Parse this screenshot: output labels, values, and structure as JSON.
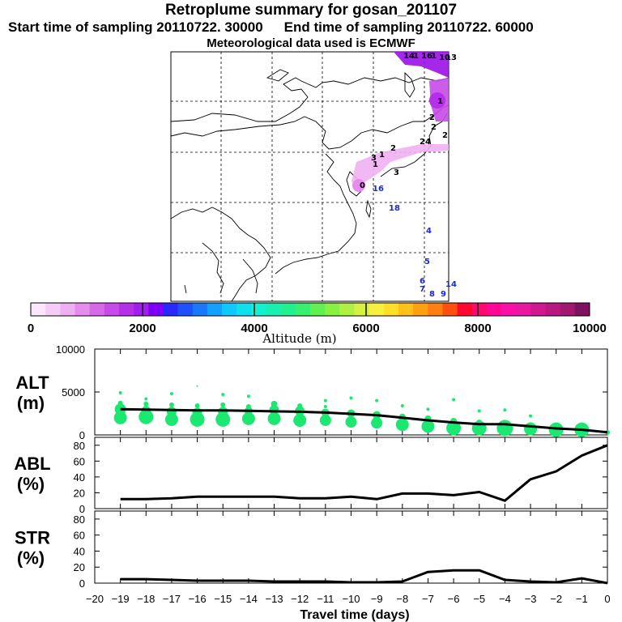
{
  "title": "Retroplume summary for gosan_201107",
  "start_label": "Start time of sampling 20110722. 30000",
  "end_label": "End time of sampling 20110722. 60000",
  "met_label": "Meteorological data used is ECMWF",
  "colorbar": {
    "ticks": [
      "0",
      "2000",
      "4000",
      "6000",
      "8000",
      "10000"
    ],
    "label": "Altitude (m)",
    "colors": [
      "#fbe6fb",
      "#f5ccf6",
      "#efb0f2",
      "#e58cee",
      "#d868ea",
      "#c84ae8",
      "#b630ea",
      "#a21ef0",
      "#7c00f8",
      "#2828ff",
      "#1e50ff",
      "#1a78ff",
      "#14a0ff",
      "#0ec8ff",
      "#10e0ee",
      "#14f0d0",
      "#18f0b0",
      "#20f090",
      "#38f070",
      "#60f050",
      "#88f040",
      "#b0f040",
      "#d8f040",
      "#f8f040",
      "#ffe028",
      "#ffc018",
      "#ffa010",
      "#ff8010",
      "#ff5010",
      "#ff0830",
      "#ff0870",
      "#ff0898",
      "#f810a8",
      "#e818a0",
      "#d01890",
      "#b81880",
      "#a01870",
      "#801060"
    ],
    "trace_color": "#1ae8a0"
  },
  "map": {
    "labels": [
      "14",
      "1",
      "16",
      "1",
      "10",
      "13",
      "2",
      "1",
      "3",
      "24",
      "1",
      "2",
      "2",
      "2",
      "1",
      "3",
      "0",
      "16",
      "18",
      "4",
      "5",
      "6",
      "7",
      "8",
      "9",
      "14"
    ]
  },
  "chart_data": [
    {
      "type": "line",
      "name": "ALT",
      "ylabel": "ALT",
      "yunit": "(m)",
      "ylim": [
        0,
        10000
      ],
      "yticks": [
        "10000",
        "5000",
        "0"
      ],
      "x": [
        -19,
        -18,
        -17,
        -16,
        -15,
        -14,
        -13,
        -12,
        -11,
        -10,
        -9,
        -8,
        -7,
        -6,
        -5,
        -4,
        -3,
        -2,
        -1,
        0
      ],
      "values": [
        3000,
        2950,
        2900,
        2850,
        2850,
        2800,
        2750,
        2700,
        2600,
        2450,
        2300,
        2000,
        1700,
        1450,
        1250,
        1250,
        1000,
        750,
        600,
        300
      ],
      "scatter_color": "#1ae870",
      "scatter": [
        {
          "x": -19,
          "y": 3000,
          "s": 7
        },
        {
          "x": -19,
          "y": 3700,
          "s": 3
        },
        {
          "x": -19,
          "y": 2000,
          "s": 8
        },
        {
          "x": -19,
          "y": 4900,
          "s": 2
        },
        {
          "x": -18,
          "y": 2800,
          "s": 6
        },
        {
          "x": -18,
          "y": 3600,
          "s": 3
        },
        {
          "x": -18,
          "y": 2100,
          "s": 9
        },
        {
          "x": -18,
          "y": 4200,
          "s": 2
        },
        {
          "x": -17,
          "y": 2700,
          "s": 6
        },
        {
          "x": -17,
          "y": 3500,
          "s": 3
        },
        {
          "x": -17,
          "y": 1800,
          "s": 8
        },
        {
          "x": -17,
          "y": 4800,
          "s": 2
        },
        {
          "x": -16,
          "y": 2600,
          "s": 6
        },
        {
          "x": -16,
          "y": 3400,
          "s": 3
        },
        {
          "x": -16,
          "y": 1800,
          "s": 9
        },
        {
          "x": -16,
          "y": 5700,
          "s": 1
        },
        {
          "x": -15,
          "y": 2700,
          "s": 6
        },
        {
          "x": -15,
          "y": 3500,
          "s": 3
        },
        {
          "x": -15,
          "y": 1800,
          "s": 9
        },
        {
          "x": -15,
          "y": 4700,
          "s": 2
        },
        {
          "x": -14,
          "y": 2800,
          "s": 5
        },
        {
          "x": -14,
          "y": 3300,
          "s": 3
        },
        {
          "x": -14,
          "y": 1900,
          "s": 8
        },
        {
          "x": -14,
          "y": 4500,
          "s": 2
        },
        {
          "x": -13,
          "y": 2900,
          "s": 6
        },
        {
          "x": -13,
          "y": 3600,
          "s": 4
        },
        {
          "x": -13,
          "y": 1900,
          "s": 8
        },
        {
          "x": -12,
          "y": 2800,
          "s": 6
        },
        {
          "x": -12,
          "y": 3400,
          "s": 3
        },
        {
          "x": -12,
          "y": 1700,
          "s": 8
        },
        {
          "x": -11,
          "y": 2600,
          "s": 5
        },
        {
          "x": -11,
          "y": 3300,
          "s": 2
        },
        {
          "x": -11,
          "y": 1700,
          "s": 7
        },
        {
          "x": -11,
          "y": 4000,
          "s": 2
        },
        {
          "x": -10,
          "y": 2500,
          "s": 5
        },
        {
          "x": -10,
          "y": 1500,
          "s": 7
        },
        {
          "x": -10,
          "y": 4300,
          "s": 2
        },
        {
          "x": -9,
          "y": 2300,
          "s": 5
        },
        {
          "x": -9,
          "y": 1400,
          "s": 7
        },
        {
          "x": -9,
          "y": 4000,
          "s": 2
        },
        {
          "x": -8,
          "y": 2100,
          "s": 4
        },
        {
          "x": -8,
          "y": 1200,
          "s": 8
        },
        {
          "x": -8,
          "y": 3400,
          "s": 2
        },
        {
          "x": -7,
          "y": 1900,
          "s": 4
        },
        {
          "x": -7,
          "y": 1000,
          "s": 8
        },
        {
          "x": -7,
          "y": 3000,
          "s": 2
        },
        {
          "x": -6,
          "y": 1600,
          "s": 4
        },
        {
          "x": -6,
          "y": 800,
          "s": 9
        },
        {
          "x": -6,
          "y": 4100,
          "s": 2
        },
        {
          "x": -5,
          "y": 1400,
          "s": 4
        },
        {
          "x": -5,
          "y": 800,
          "s": 9
        },
        {
          "x": -5,
          "y": 2800,
          "s": 2
        },
        {
          "x": -4,
          "y": 1300,
          "s": 5
        },
        {
          "x": -4,
          "y": 800,
          "s": 10
        },
        {
          "x": -4,
          "y": 2900,
          "s": 2
        },
        {
          "x": -3,
          "y": 1100,
          "s": 4
        },
        {
          "x": -3,
          "y": 700,
          "s": 8
        },
        {
          "x": -3,
          "y": 2200,
          "s": 2
        },
        {
          "x": -2,
          "y": 800,
          "s": 5
        },
        {
          "x": -2,
          "y": 600,
          "s": 9
        },
        {
          "x": -1,
          "y": 600,
          "s": 9
        },
        {
          "x": -1,
          "y": 1100,
          "s": 3
        },
        {
          "x": 0,
          "y": 300,
          "s": 3
        }
      ]
    },
    {
      "type": "line",
      "name": "ABL",
      "ylabel": "ABL",
      "yunit": "(%)",
      "ylim": [
        0,
        90
      ],
      "yticks": [
        "80",
        "60",
        "40",
        "20",
        "0"
      ],
      "x": [
        -19,
        -18,
        -17,
        -16,
        -15,
        -14,
        -13,
        -12,
        -11,
        -10,
        -9,
        -8,
        -7,
        -6,
        -5,
        -4,
        -3,
        -2,
        -1,
        0
      ],
      "values": [
        12,
        12,
        13,
        15,
        15,
        15,
        15,
        13,
        13,
        15,
        12,
        19,
        19,
        17,
        21,
        10,
        37,
        47,
        67,
        80
      ]
    },
    {
      "type": "line",
      "name": "STR",
      "ylabel": "STR",
      "yunit": "(%)",
      "ylim": [
        0,
        90
      ],
      "yticks": [
        "80",
        "60",
        "40",
        "20",
        "0"
      ],
      "x": [
        -19,
        -18,
        -17,
        -16,
        -15,
        -14,
        -13,
        -12,
        -11,
        -10,
        -9,
        -8,
        -7,
        -6,
        -5,
        -4,
        -3,
        -2,
        -1,
        0
      ],
      "values": [
        5,
        5,
        4,
        3,
        3,
        3,
        2,
        2,
        2,
        1,
        1,
        2,
        14,
        16,
        16,
        4,
        2,
        1,
        6,
        0
      ]
    }
  ],
  "xaxis": {
    "label": "Travel time (days)",
    "ticks": [
      "−20",
      "−19",
      "−18",
      "−17",
      "−16",
      "−15",
      "−14",
      "−13",
      "−12",
      "−11",
      "−10",
      "−9",
      "−8",
      "−7",
      "−6",
      "−5",
      "−4",
      "−3",
      "−2",
      "−1",
      "0"
    ],
    "min": -20,
    "max": 0
  }
}
